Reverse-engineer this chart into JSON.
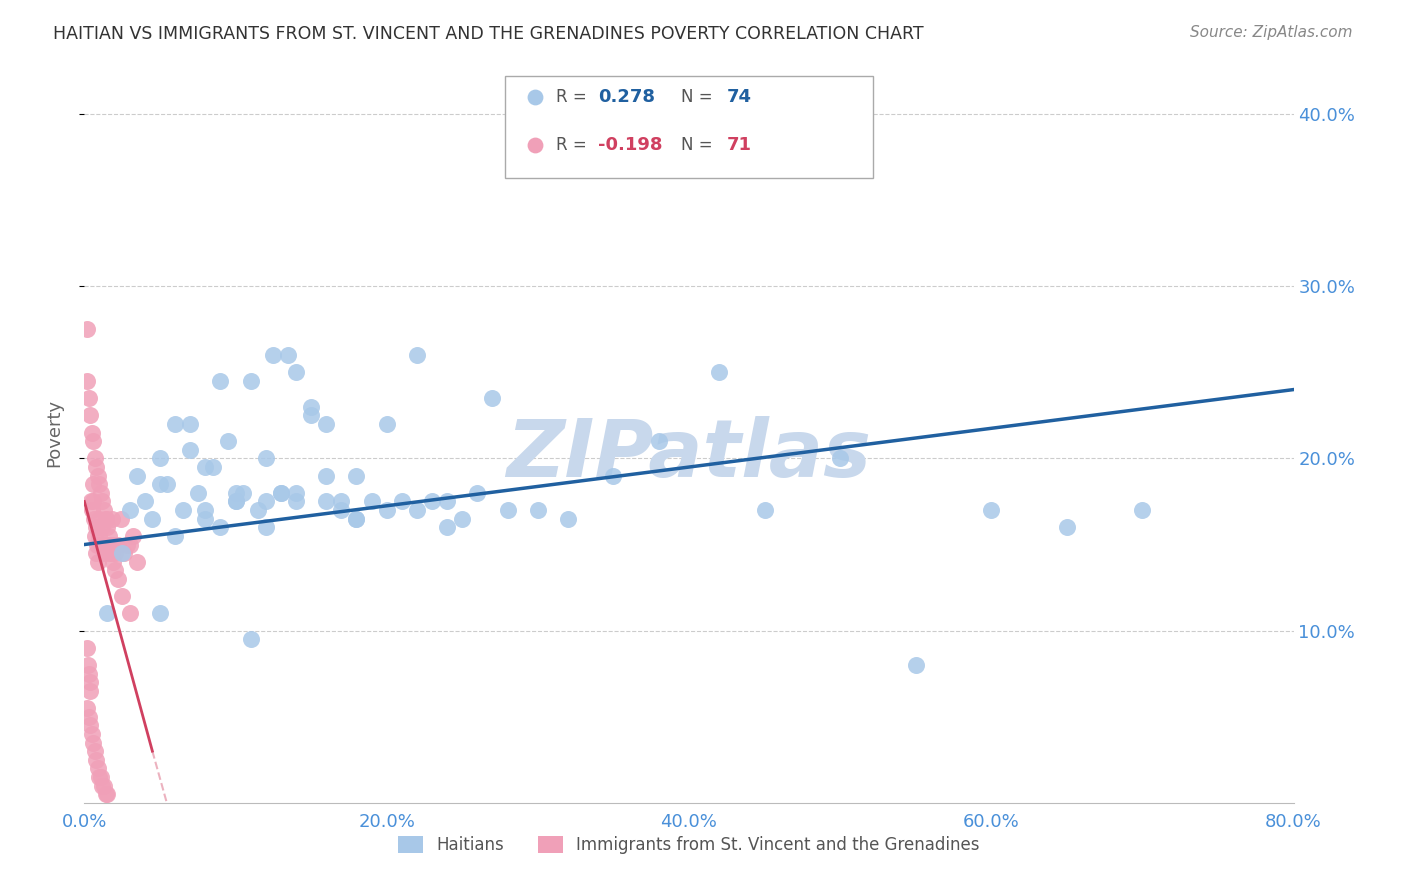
{
  "title": "HAITIAN VS IMMIGRANTS FROM ST. VINCENT AND THE GRENADINES POVERTY CORRELATION CHART",
  "source": "Source: ZipAtlas.com",
  "ylabel": "Poverty",
  "xlim": [
    0,
    80
  ],
  "ylim": [
    0,
    43
  ],
  "R_blue": "0.278",
  "N_blue": "74",
  "R_pink": "-0.198",
  "N_pink": "71",
  "blue_color": "#a8c8e8",
  "blue_line_color": "#2060a0",
  "pink_color": "#f0a0b8",
  "pink_line_color": "#d04060",
  "watermark": "ZIPatlas",
  "watermark_color": "#c8d8ec",
  "grid_color": "#cccccc",
  "title_color": "#333333",
  "axis_tick_color": "#4a90d9",
  "legend_label_color": "#555555",
  "blue_scatter_x": [
    1.5,
    2.5,
    3.5,
    4.0,
    4.5,
    5.0,
    5.5,
    6.0,
    6.5,
    7.0,
    7.5,
    8.0,
    8.5,
    9.0,
    9.5,
    10.0,
    10.5,
    11.0,
    11.5,
    12.0,
    12.5,
    13.0,
    13.5,
    14.0,
    15.0,
    16.0,
    17.0,
    18.0,
    19.0,
    20.0,
    21.0,
    22.0,
    23.0,
    24.0,
    25.0,
    26.0,
    27.0,
    28.0,
    30.0,
    32.0,
    35.0,
    38.0,
    42.0,
    45.0,
    50.0,
    55.0,
    60.0,
    65.0,
    70.0,
    5.0,
    7.0,
    9.0,
    11.0,
    13.0,
    15.0,
    17.0,
    8.0,
    10.0,
    12.0,
    14.0,
    16.0,
    18.0,
    20.0,
    22.0,
    24.0,
    3.0,
    5.0,
    6.0,
    8.0,
    10.0,
    12.0,
    14.0,
    16.0,
    18.0
  ],
  "blue_scatter_y": [
    11.0,
    14.5,
    19.0,
    17.5,
    16.5,
    20.0,
    18.5,
    22.0,
    17.0,
    22.0,
    18.0,
    17.0,
    19.5,
    16.0,
    21.0,
    17.5,
    18.0,
    24.5,
    17.0,
    20.0,
    26.0,
    18.0,
    26.0,
    25.0,
    22.5,
    19.0,
    17.5,
    16.5,
    17.5,
    22.0,
    17.5,
    26.0,
    17.5,
    16.0,
    16.5,
    18.0,
    23.5,
    17.0,
    17.0,
    16.5,
    19.0,
    21.0,
    25.0,
    17.0,
    20.0,
    8.0,
    17.0,
    16.0,
    17.0,
    18.5,
    20.5,
    24.5,
    9.5,
    18.0,
    23.0,
    17.0,
    16.5,
    18.0,
    17.5,
    18.0,
    17.5,
    16.5,
    17.0,
    17.0,
    17.5,
    17.0,
    11.0,
    15.5,
    19.5,
    17.5,
    16.0,
    17.5,
    22.0,
    19.0
  ],
  "pink_scatter_x": [
    0.15,
    0.2,
    0.25,
    0.3,
    0.35,
    0.4,
    0.45,
    0.5,
    0.55,
    0.6,
    0.65,
    0.7,
    0.75,
    0.8,
    0.85,
    0.9,
    0.95,
    1.0,
    1.1,
    1.2,
    1.3,
    1.4,
    1.5,
    1.6,
    1.7,
    1.8,
    1.9,
    2.0,
    2.2,
    2.4,
    2.6,
    2.8,
    3.0,
    3.2,
    3.5,
    0.2,
    0.3,
    0.4,
    0.5,
    0.6,
    0.7,
    0.8,
    0.9,
    1.0,
    1.1,
    1.2,
    1.3,
    1.4,
    1.5,
    0.2,
    0.3,
    0.4,
    0.5,
    0.6,
    0.7,
    0.8,
    0.9,
    1.0,
    1.1,
    1.2,
    1.3,
    1.4,
    1.5,
    1.6,
    1.7,
    1.8,
    1.9,
    2.0,
    2.2,
    2.5,
    3.0
  ],
  "pink_scatter_y": [
    27.5,
    9.0,
    8.0,
    7.5,
    7.0,
    6.5,
    17.5,
    17.0,
    18.5,
    17.5,
    16.5,
    15.5,
    14.5,
    16.0,
    15.0,
    14.0,
    16.5,
    15.5,
    15.0,
    16.0,
    14.5,
    16.5,
    15.0,
    14.5,
    15.0,
    16.5,
    15.0,
    14.5,
    15.0,
    16.5,
    14.5,
    15.0,
    15.0,
    15.5,
    14.0,
    5.5,
    5.0,
    4.5,
    4.0,
    3.5,
    3.0,
    2.5,
    2.0,
    1.5,
    1.5,
    1.0,
    1.0,
    0.5,
    0.5,
    24.5,
    23.5,
    22.5,
    21.5,
    21.0,
    20.0,
    19.5,
    19.0,
    18.5,
    18.0,
    17.5,
    17.0,
    16.5,
    16.0,
    15.5,
    15.0,
    14.5,
    14.0,
    13.5,
    13.0,
    12.0,
    11.0
  ],
  "blue_line_x0": 0,
  "blue_line_y0": 15.0,
  "blue_line_x1": 80,
  "blue_line_y1": 24.0,
  "pink_line_x0": 0.0,
  "pink_line_y0": 17.5,
  "pink_line_x1": 4.5,
  "pink_line_y1": 3.0
}
